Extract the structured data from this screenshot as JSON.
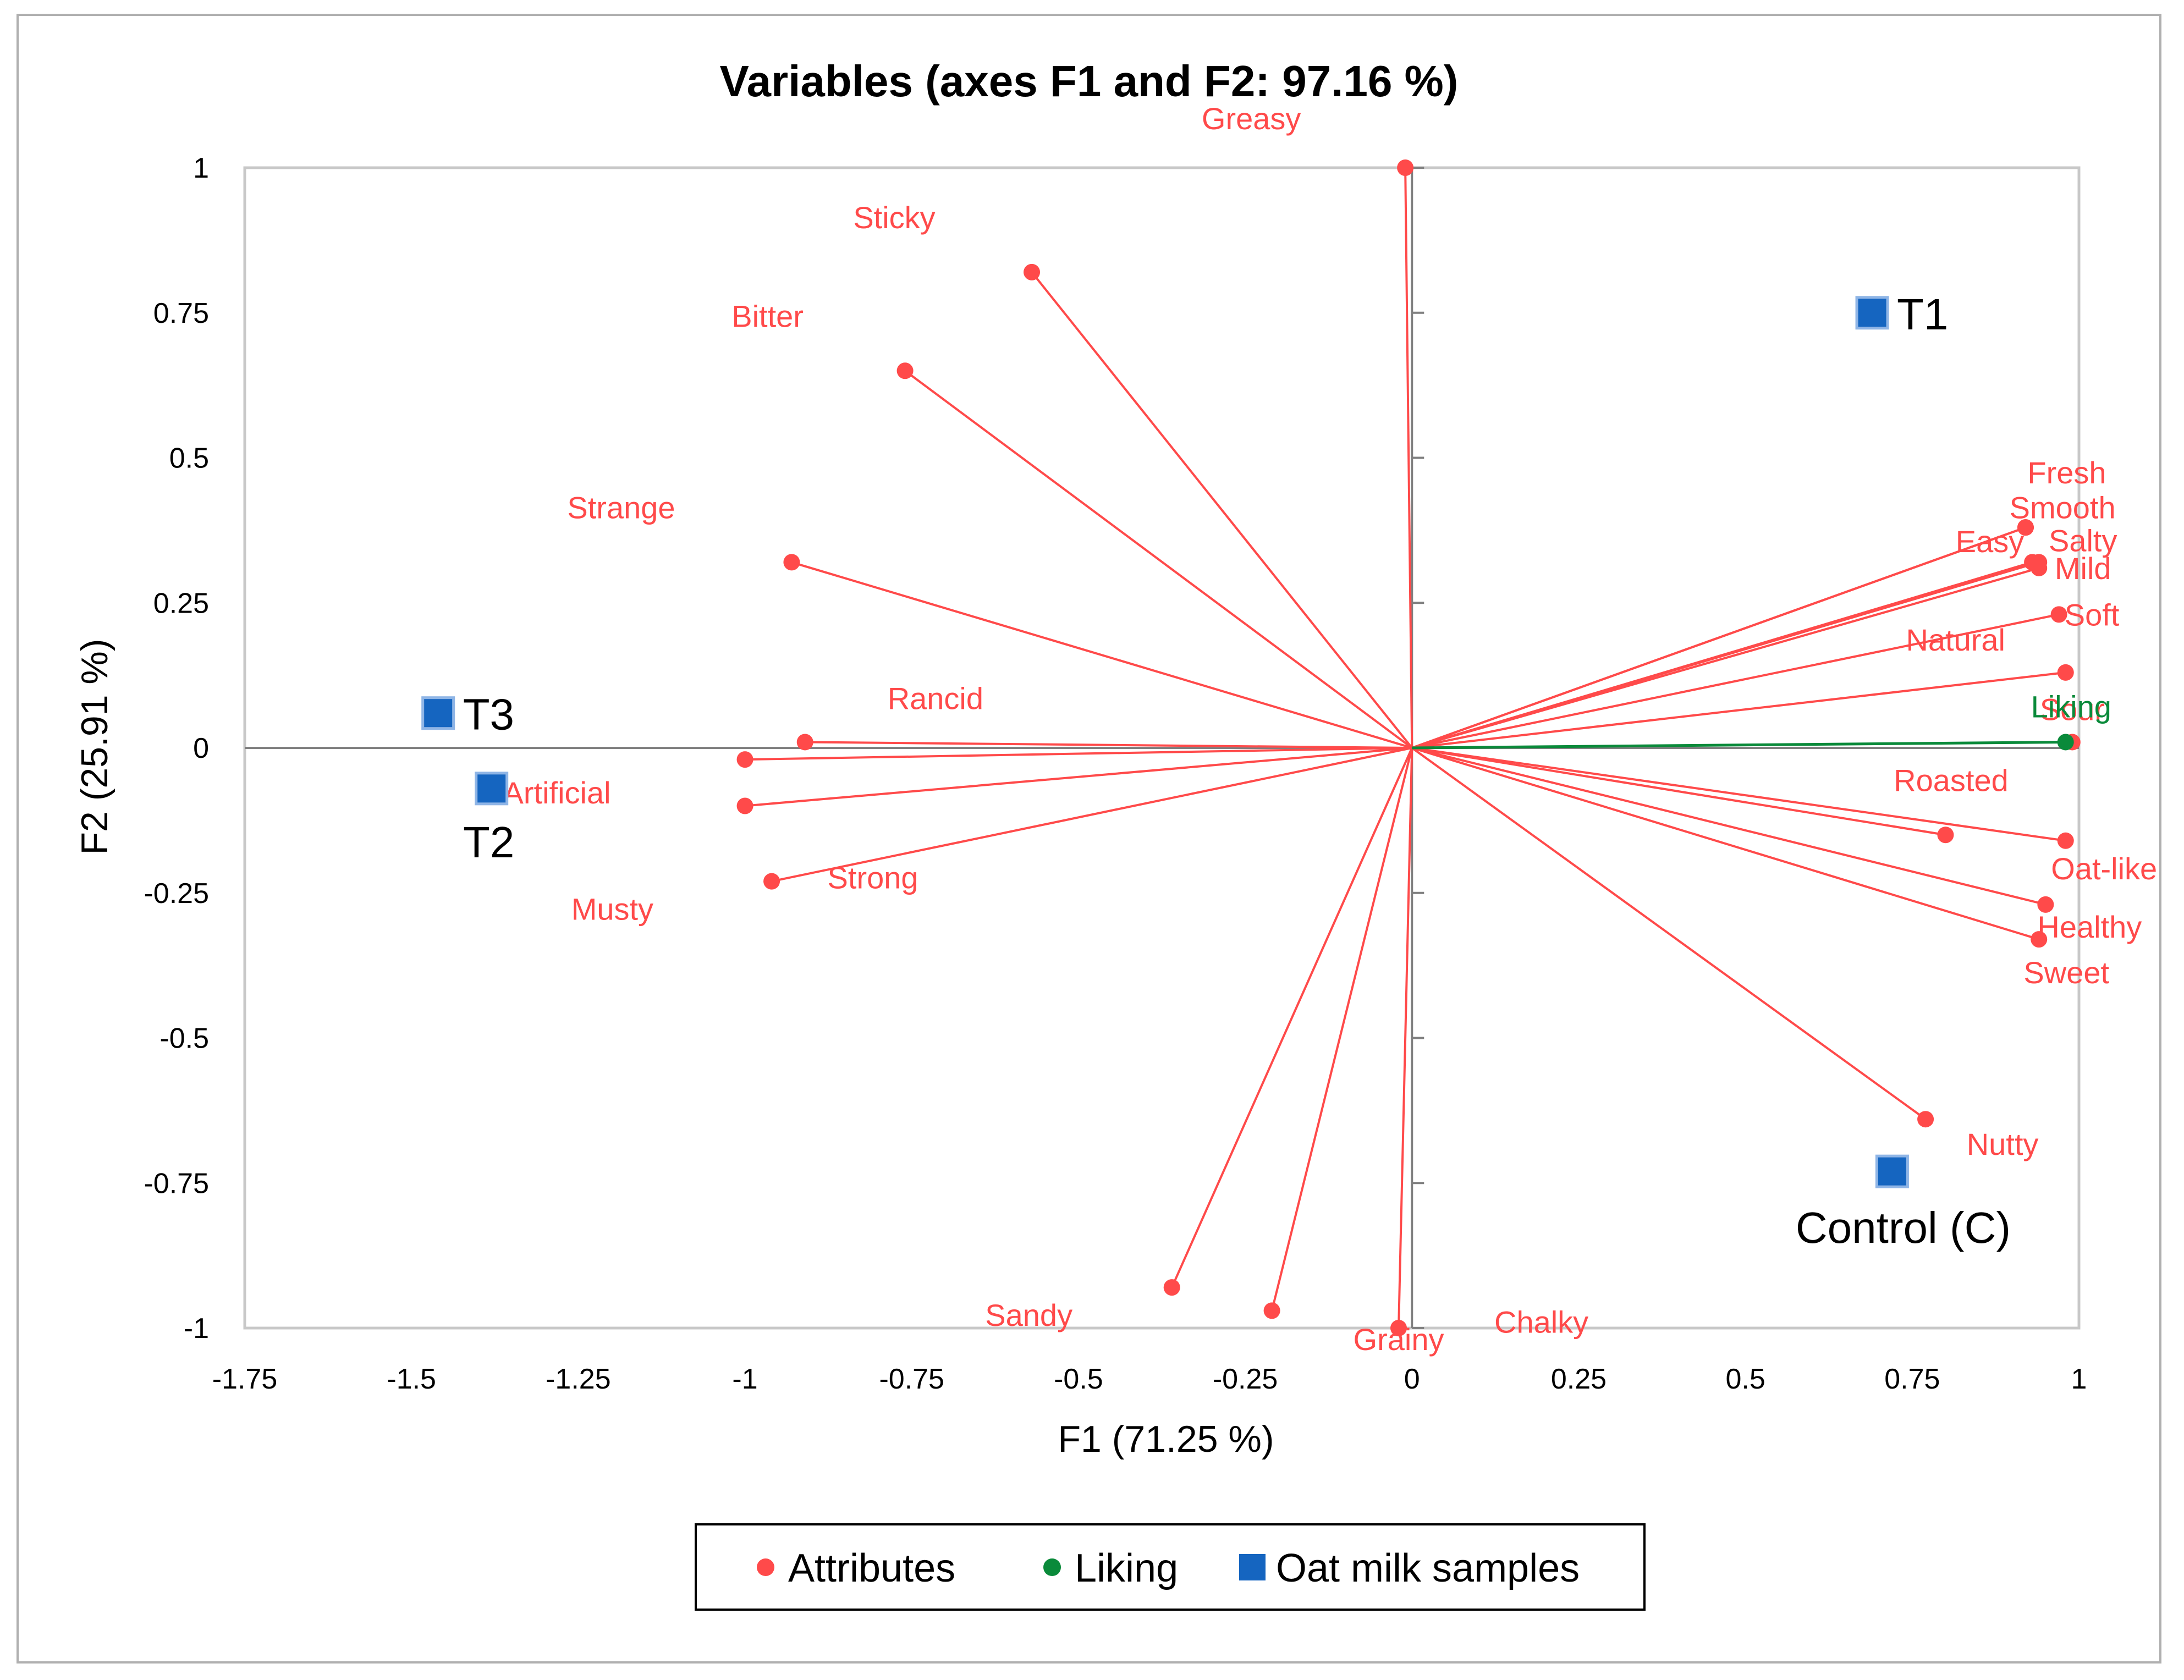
{
  "chart_data": {
    "type": "scatter",
    "title": "Variables (axes F1 and F2: 97.16 %)",
    "xlabel": "F1 (71.25 %)",
    "ylabel": "F2 (25.91 %)",
    "xlim": [
      -1.75,
      1
    ],
    "ylim": [
      -1,
      1
    ],
    "x_ticks": [
      "-1.75",
      "-1.5",
      "-1.25",
      "-1",
      "-0.75",
      "-0.5",
      "-0.25",
      "0",
      "0.25",
      "0.5",
      "0.75",
      "1"
    ],
    "y_ticks": [
      "1",
      "0.75",
      "0.5",
      "0.25",
      "0",
      "-0.25",
      "-0.5",
      "-0.75",
      "-1"
    ],
    "legend_position": "bottom",
    "colors": {
      "attributes": "#ff4a4a",
      "liking": "#0a8a3a",
      "samples": "#1565c0"
    },
    "series": [
      {
        "name": "Attributes",
        "points": [
          {
            "label": "Greasy",
            "x": -0.01,
            "y": 1.0
          },
          {
            "label": "Sticky",
            "x": -0.57,
            "y": 0.82
          },
          {
            "label": "Bitter",
            "x": -0.76,
            "y": 0.65
          },
          {
            "label": "Strange",
            "x": -0.93,
            "y": 0.32
          },
          {
            "label": "Rancid",
            "x": -0.91,
            "y": 0.01
          },
          {
            "label": "Artificial",
            "x": -1.0,
            "y": -0.02
          },
          {
            "label": "Strong",
            "x": -1.0,
            "y": -0.1
          },
          {
            "label": "Musty",
            "x": -0.96,
            "y": -0.23
          },
          {
            "label": "Sandy",
            "x": -0.36,
            "y": -0.93
          },
          {
            "label": "Chalky",
            "x": -0.21,
            "y": -0.97
          },
          {
            "label": "Grainy",
            "x": -0.02,
            "y": -1.0
          },
          {
            "label": "Nutty",
            "x": 0.77,
            "y": -0.64
          },
          {
            "label": "Sweet",
            "x": 0.94,
            "y": -0.33
          },
          {
            "label": "Healthy",
            "x": 0.95,
            "y": -0.27
          },
          {
            "label": "Oat-like",
            "x": 0.98,
            "y": -0.16
          },
          {
            "label": "Roasted",
            "x": 0.8,
            "y": -0.15
          },
          {
            "label": "Sour",
            "x": 0.99,
            "y": 0.01
          },
          {
            "label": "Natural",
            "x": 0.98,
            "y": 0.13
          },
          {
            "label": "Soft",
            "x": 0.97,
            "y": 0.23
          },
          {
            "label": "Mild",
            "x": 0.94,
            "y": 0.31
          },
          {
            "label": "Salty",
            "x": 0.94,
            "y": 0.32
          },
          {
            "label": "Smooth",
            "x": 0.93,
            "y": 0.32
          },
          {
            "label": "Easy",
            "x": 0.92,
            "y": 0.38
          },
          {
            "label": "Fresh",
            "x": 0.92,
            "y": 0.38
          }
        ]
      },
      {
        "name": "Liking",
        "points": [
          {
            "label": "Liking",
            "x": 0.98,
            "y": 0.01
          }
        ]
      },
      {
        "name": "Oat milk samples",
        "points": [
          {
            "label": "T1",
            "x": 0.69,
            "y": 0.75
          },
          {
            "label": "T3",
            "x": -1.46,
            "y": 0.06
          },
          {
            "label": "T2",
            "x": -1.38,
            "y": -0.07
          },
          {
            "label": "Control (C)",
            "x": 0.72,
            "y": -0.73
          }
        ]
      }
    ]
  }
}
